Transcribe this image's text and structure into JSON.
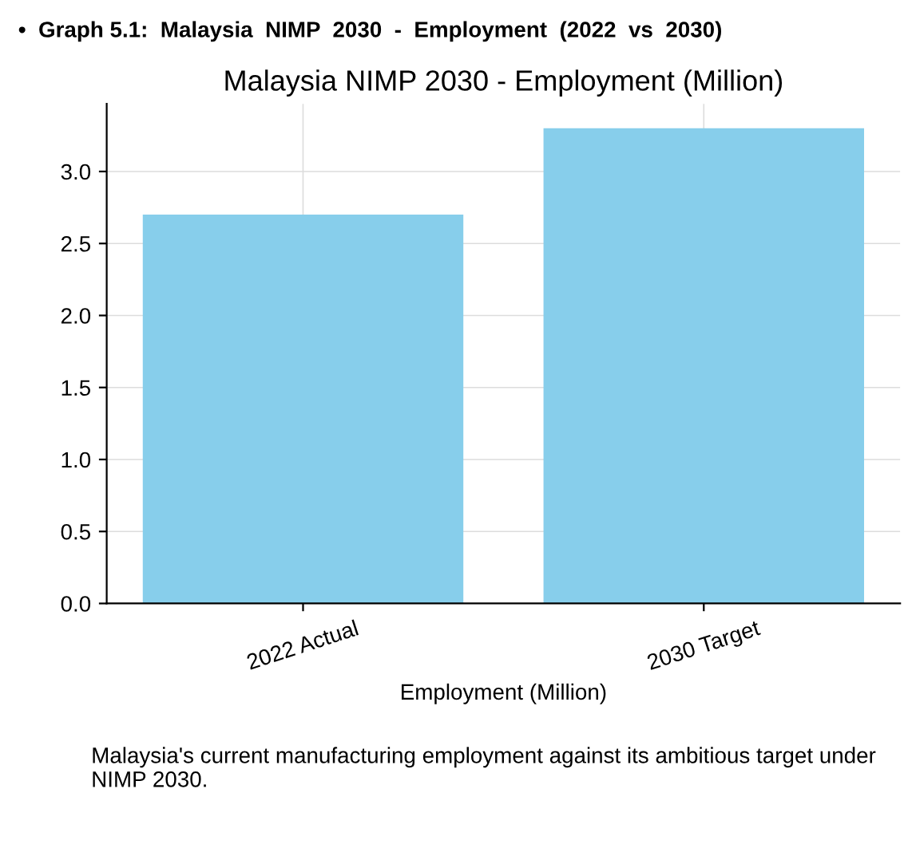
{
  "chart_data": {
    "type": "bar",
    "title": "Malaysia NIMP 2030 - Employment (Million)",
    "subtitle": "•  Graph 5.1:  Malaysia  NIMP  2030  -  Employment  (2022  vs  2030)",
    "xlabel": "Employment (Million)",
    "categories": [
      "2022 Actual",
      "2030 Target"
    ],
    "values": [
      2.7,
      3.3
    ],
    "color": "#87ceeb",
    "ylim": [
      0,
      3.47
    ],
    "yticks": [
      {
        "value": 0,
        "label": "0.0"
      },
      0.5,
      {
        "value": 1,
        "label": "1.0"
      },
      1.5,
      {
        "value": 2,
        "label": "2.0"
      },
      2.5,
      {
        "value": 3,
        "label": "3.0"
      }
    ],
    "grid": true,
    "annotations": [
      "Malaysia's current manufacturing employment against its ambitious target under NIMP 2030."
    ]
  }
}
